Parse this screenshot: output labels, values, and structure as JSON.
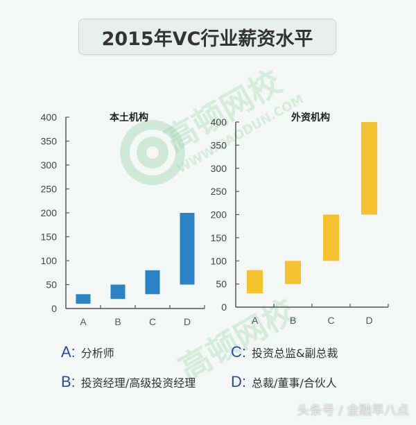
{
  "header": {
    "title": "2015年VC行业薪资水平"
  },
  "watermark": {
    "text": "高顿网校",
    "url_text": "WWW.GAODUN.COM",
    "color": "#bfe3cc"
  },
  "legend": [
    {
      "key": "A:",
      "label": "分析师"
    },
    {
      "key": "B:",
      "label": "投资经理/高级投资经理"
    },
    {
      "key": "C:",
      "label": "投资总监&副总裁"
    },
    {
      "key": "D:",
      "label": "总裁/董事/合伙人"
    }
  ],
  "footer": {
    "text": "头条号 / 金融早八点"
  },
  "colors": {
    "domestic": "#2b83c6",
    "foreign": "#f3c22e",
    "axis": "#555555"
  },
  "chart_data": [
    {
      "type": "bar",
      "subtype": "floating-range",
      "title": "本土机构",
      "categories": [
        "A",
        "B",
        "C",
        "D"
      ],
      "series": [
        {
          "name": "low",
          "values": [
            10,
            20,
            30,
            50
          ]
        },
        {
          "name": "high",
          "values": [
            30,
            50,
            80,
            200
          ]
        }
      ],
      "xlabel": "",
      "ylabel": "",
      "ylim": [
        0,
        400
      ],
      "yticks": [
        0,
        50,
        100,
        150,
        200,
        250,
        300,
        350,
        400
      ],
      "grid": false,
      "color": "#2b83c6"
    },
    {
      "type": "bar",
      "subtype": "floating-range",
      "title": "外资机构",
      "categories": [
        "A",
        "B",
        "C",
        "D"
      ],
      "series": [
        {
          "name": "low",
          "values": [
            30,
            50,
            100,
            200
          ]
        },
        {
          "name": "high",
          "values": [
            80,
            100,
            200,
            400
          ]
        }
      ],
      "xlabel": "",
      "ylabel": "",
      "ylim": [
        0,
        400
      ],
      "yticks": [
        0,
        50,
        100,
        150,
        200,
        250,
        300,
        350,
        400
      ],
      "grid": false,
      "color": "#f3c22e"
    }
  ]
}
